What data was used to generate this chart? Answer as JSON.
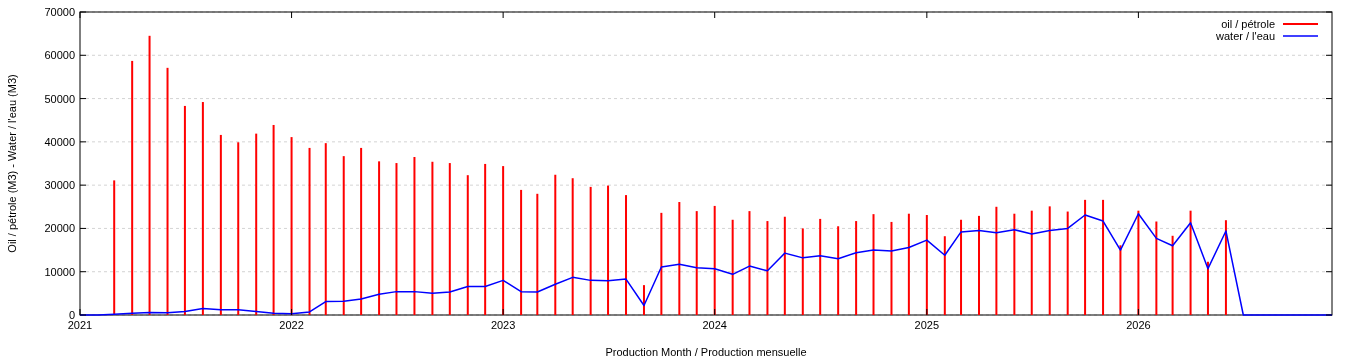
{
  "chart_data": {
    "type": "line",
    "xlabel": "Production Month / Production mensuelle",
    "ylabel": "Oil / pétrole (M3)  -  Water / l'eau (M3)",
    "xlim": [
      "2021-01",
      "2026-12"
    ],
    "xticks": [
      "2021",
      "2022",
      "2023",
      "2024",
      "2025",
      "2026"
    ],
    "ylim": [
      0,
      70000
    ],
    "yticks": [
      0,
      10000,
      20000,
      30000,
      40000,
      50000,
      60000,
      70000
    ],
    "grid": "y",
    "legend": "top right",
    "series": [
      {
        "name": "oil / pétrole",
        "type": "bar",
        "color": "#ff0000",
        "x": [
          "2021-03",
          "2021-04",
          "2021-05",
          "2021-06",
          "2021-07",
          "2021-08",
          "2021-09",
          "2021-10",
          "2021-11",
          "2021-12",
          "2022-01",
          "2022-02",
          "2022-03",
          "2022-04",
          "2022-05",
          "2022-06",
          "2022-07",
          "2022-08",
          "2022-09",
          "2022-10",
          "2022-11",
          "2022-12",
          "2023-01",
          "2023-02",
          "2023-03",
          "2023-04",
          "2023-05",
          "2023-06",
          "2023-07",
          "2023-08",
          "2023-09",
          "2023-10",
          "2023-11",
          "2023-12",
          "2024-01",
          "2024-02",
          "2024-03",
          "2024-04",
          "2024-05",
          "2024-06",
          "2024-07",
          "2024-08",
          "2024-09",
          "2024-10",
          "2024-11",
          "2024-12",
          "2025-01",
          "2025-02",
          "2025-03",
          "2025-04",
          "2025-05",
          "2025-06",
          "2025-07",
          "2025-08",
          "2025-09",
          "2025-10",
          "2025-11",
          "2025-12",
          "2026-01",
          "2026-02",
          "2026-03",
          "2026-04",
          "2026-05",
          "2026-06"
        ],
        "values": [
          31100,
          58700,
          64500,
          57100,
          48300,
          49200,
          41600,
          39900,
          41900,
          43900,
          41100,
          38600,
          39700,
          36700,
          38600,
          35500,
          35100,
          36500,
          35400,
          35100,
          32300,
          34900,
          34400,
          28900,
          28000,
          32400,
          31600,
          29600,
          29900,
          27700,
          6900,
          23600,
          26100,
          24000,
          25200,
          22000,
          24000,
          21700,
          22700,
          20000,
          22200,
          20500,
          21700,
          23300,
          21500,
          23400,
          23100,
          18200,
          22000,
          22900,
          25000,
          23400,
          24100,
          25100,
          23900,
          26600,
          26600,
          16100,
          24100,
          21600,
          18300,
          24100,
          12300,
          21900
        ]
      },
      {
        "name": "water / l'eau",
        "color": "#0000ff",
        "x": [
          "2021-01",
          "2021-02",
          "2021-03",
          "2021-04",
          "2021-05",
          "2021-06",
          "2021-07",
          "2021-08",
          "2021-09",
          "2021-10",
          "2021-11",
          "2021-12",
          "2022-01",
          "2022-02",
          "2022-03",
          "2022-04",
          "2022-05",
          "2022-06",
          "2022-07",
          "2022-08",
          "2022-09",
          "2022-10",
          "2022-11",
          "2022-12",
          "2023-01",
          "2023-02",
          "2023-03",
          "2023-04",
          "2023-05",
          "2023-06",
          "2023-07",
          "2023-08",
          "2023-09",
          "2023-10",
          "2023-11",
          "2023-12",
          "2024-01",
          "2024-02",
          "2024-03",
          "2024-04",
          "2024-05",
          "2024-06",
          "2024-07",
          "2024-08",
          "2024-09",
          "2024-10",
          "2024-11",
          "2024-12",
          "2025-01",
          "2025-02",
          "2025-03",
          "2025-04",
          "2025-05",
          "2025-06",
          "2025-07",
          "2025-08",
          "2025-09",
          "2025-10",
          "2025-11",
          "2025-12",
          "2026-01",
          "2026-02",
          "2026-03",
          "2026-04",
          "2026-05",
          "2026-06",
          "2026-07",
          "2026-08",
          "2026-09",
          "2026-10",
          "2026-11",
          "2026-12"
        ],
        "values": [
          0,
          0,
          200,
          400,
          600,
          500,
          800,
          1500,
          1200,
          1200,
          800,
          400,
          300,
          700,
          3100,
          3200,
          3700,
          4800,
          5400,
          5400,
          5000,
          5300,
          6600,
          6600,
          8000,
          5400,
          5300,
          7100,
          8700,
          8000,
          7900,
          8300,
          2200,
          11100,
          11700,
          10900,
          10700,
          9400,
          11300,
          10200,
          14300,
          13200,
          13700,
          13000,
          14400,
          15000,
          14800,
          15600,
          17300,
          13800,
          19200,
          19500,
          19000,
          19700,
          18700,
          19500,
          20000,
          23100,
          21700,
          15000,
          23400,
          17700,
          16000,
          21300,
          10700,
          19400,
          0,
          0,
          0,
          0,
          0,
          0
        ]
      }
    ]
  }
}
